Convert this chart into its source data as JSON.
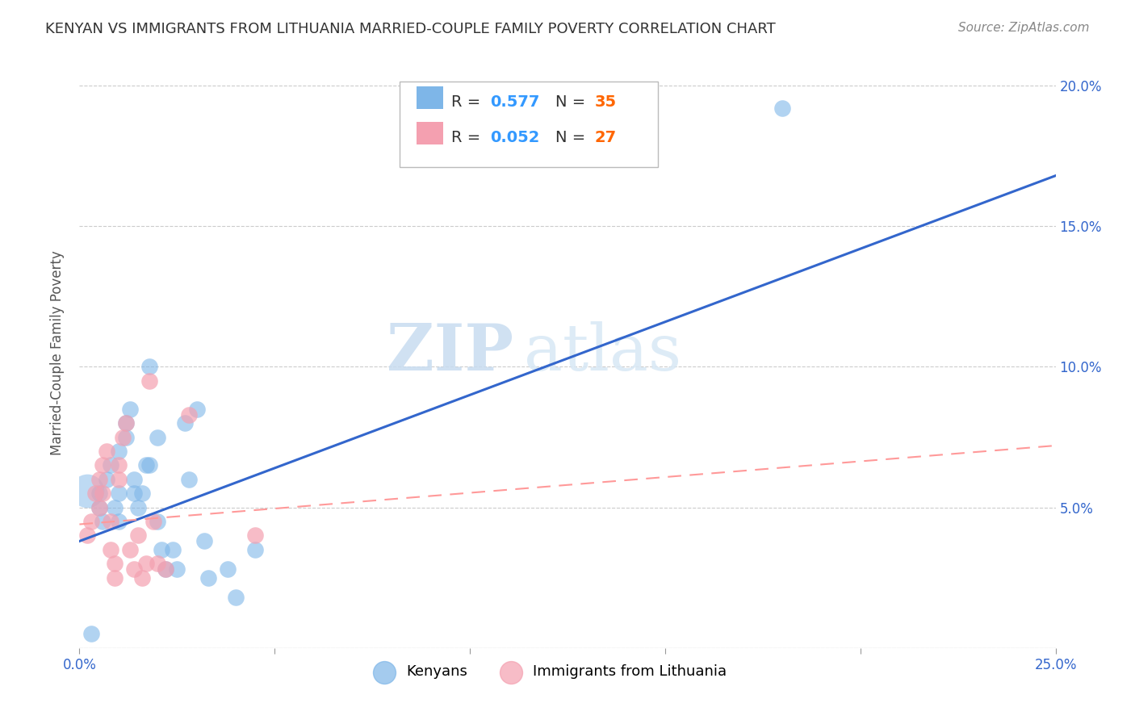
{
  "title": "KENYAN VS IMMIGRANTS FROM LITHUANIA MARRIED-COUPLE FAMILY POVERTY CORRELATION CHART",
  "source": "Source: ZipAtlas.com",
  "ylabel": "Married-Couple Family Poverty",
  "xlim": [
    0.0,
    0.25
  ],
  "ylim": [
    0.0,
    0.21
  ],
  "legend_r1": "0.577",
  "legend_n1": "35",
  "legend_r2": "0.052",
  "legend_n2": "27",
  "blue_color": "#7EB6E8",
  "pink_color": "#F4A0B0",
  "blue_line_color": "#3366CC",
  "pink_line_color": "#FF9999",
  "watermark_zip": "ZIP",
  "watermark_atlas": "atlas",
  "blue_scatter_x": [
    0.005,
    0.005,
    0.006,
    0.007,
    0.008,
    0.009,
    0.01,
    0.01,
    0.01,
    0.012,
    0.012,
    0.013,
    0.014,
    0.014,
    0.015,
    0.016,
    0.017,
    0.018,
    0.018,
    0.02,
    0.02,
    0.021,
    0.022,
    0.024,
    0.025,
    0.027,
    0.028,
    0.03,
    0.032,
    0.033,
    0.038,
    0.04,
    0.045,
    0.18,
    0.003
  ],
  "blue_scatter_y": [
    0.055,
    0.05,
    0.045,
    0.06,
    0.065,
    0.05,
    0.045,
    0.055,
    0.07,
    0.075,
    0.08,
    0.085,
    0.06,
    0.055,
    0.05,
    0.055,
    0.065,
    0.1,
    0.065,
    0.075,
    0.045,
    0.035,
    0.028,
    0.035,
    0.028,
    0.08,
    0.06,
    0.085,
    0.038,
    0.025,
    0.028,
    0.018,
    0.035,
    0.192,
    0.005
  ],
  "pink_scatter_x": [
    0.002,
    0.003,
    0.004,
    0.005,
    0.005,
    0.006,
    0.006,
    0.007,
    0.008,
    0.008,
    0.009,
    0.009,
    0.01,
    0.01,
    0.011,
    0.012,
    0.013,
    0.014,
    0.015,
    0.016,
    0.017,
    0.018,
    0.019,
    0.02,
    0.022,
    0.028,
    0.045
  ],
  "pink_scatter_y": [
    0.04,
    0.045,
    0.055,
    0.05,
    0.06,
    0.065,
    0.055,
    0.07,
    0.045,
    0.035,
    0.03,
    0.025,
    0.06,
    0.065,
    0.075,
    0.08,
    0.035,
    0.028,
    0.04,
    0.025,
    0.03,
    0.095,
    0.045,
    0.03,
    0.028,
    0.083,
    0.04
  ],
  "blue_large_x": [
    0.002
  ],
  "blue_large_y": [
    0.056
  ],
  "blue_line_x": [
    0.0,
    0.25
  ],
  "blue_line_y": [
    0.038,
    0.168
  ],
  "pink_line_x": [
    0.0,
    0.25
  ],
  "pink_line_y": [
    0.044,
    0.072
  ],
  "background_color": "#FFFFFF",
  "grid_color": "#CCCCCC",
  "tick_color": "#3366CC",
  "label_color": "#555555",
  "title_color": "#333333",
  "source_color": "#888888"
}
